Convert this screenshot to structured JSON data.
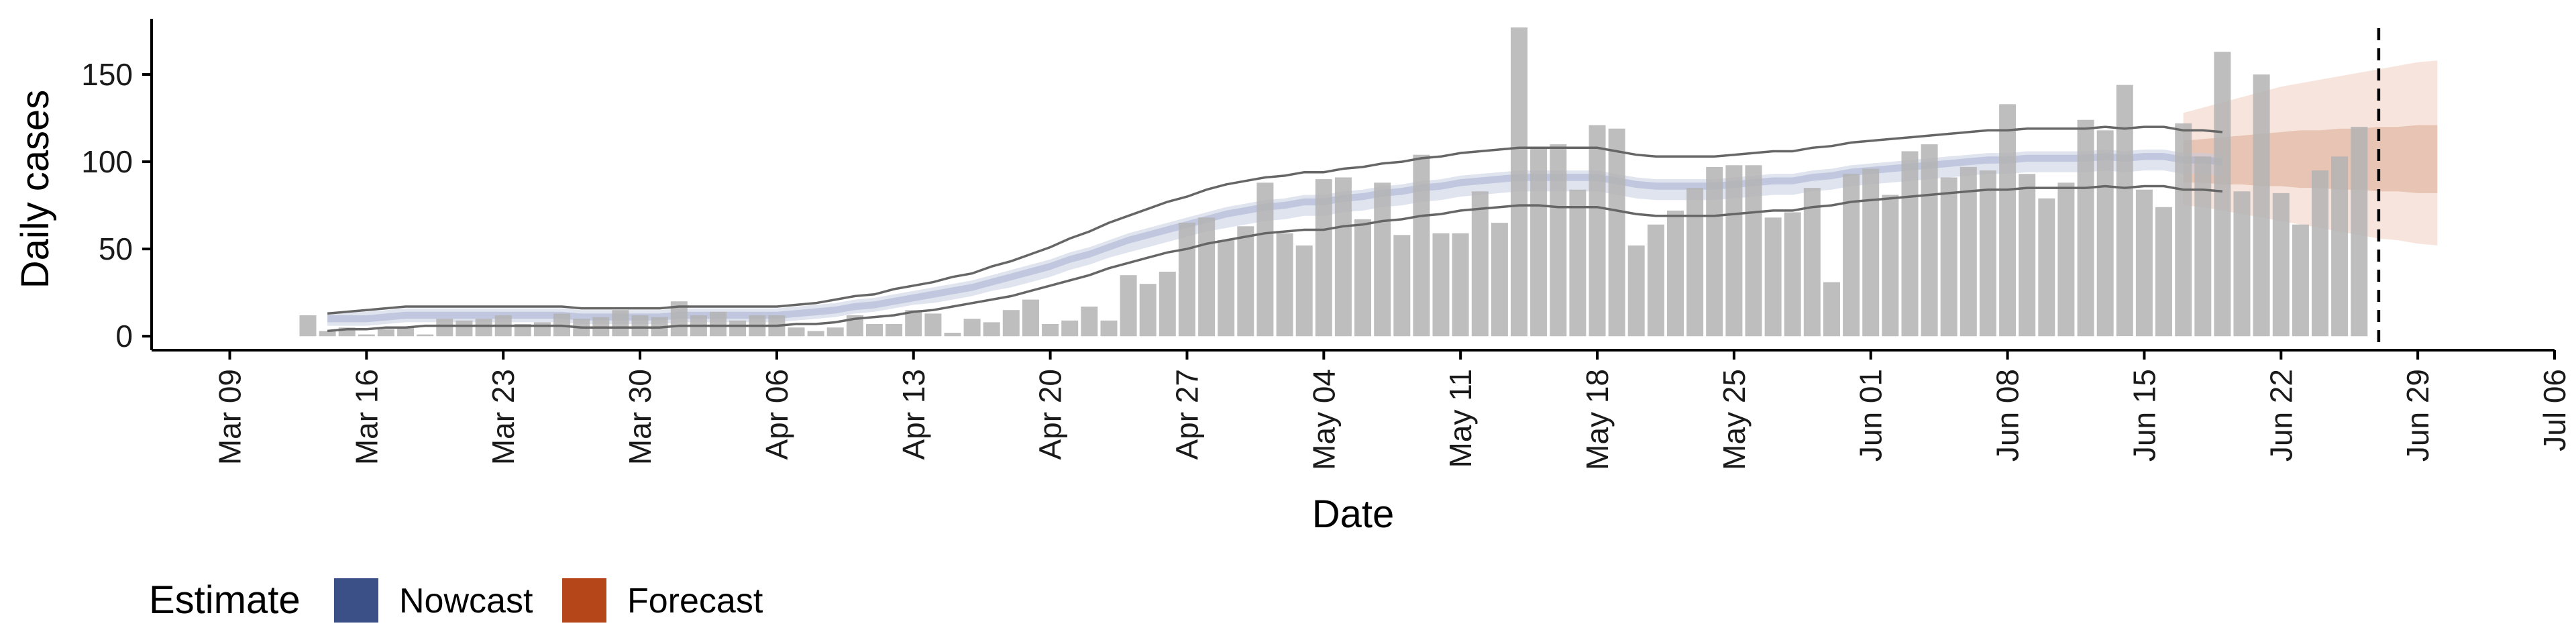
{
  "chart_data": {
    "type": "bar",
    "xlabel": "Date",
    "ylabel": "Daily cases",
    "ylim": [
      -8,
      185
    ],
    "yticks": [
      0,
      50,
      100,
      150
    ],
    "xlim": [
      "2020-03-05",
      "2020-07-06"
    ],
    "xticks": [
      "2020-03-09",
      "2020-03-16",
      "2020-03-23",
      "2020-03-30",
      "2020-04-06",
      "2020-04-13",
      "2020-04-20",
      "2020-04-27",
      "2020-05-04",
      "2020-05-11",
      "2020-05-18",
      "2020-05-25",
      "2020-06-01",
      "2020-06-08",
      "2020-06-15",
      "2020-06-22",
      "2020-06-29",
      "2020-07-06"
    ],
    "xtick_labels": [
      "Mar 09",
      "Mar 16",
      "Mar 23",
      "Mar 30",
      "Apr 06",
      "Apr 13",
      "Apr 20",
      "Apr 27",
      "May 04",
      "May 11",
      "May 18",
      "May 25",
      "Jun 01",
      "Jun 08",
      "Jun 15",
      "Jun 22",
      "Jun 29",
      "Jul 06"
    ],
    "grid": false,
    "legend": {
      "title": "Estimate",
      "position": "bottom-left",
      "entries": [
        {
          "label": "Nowcast",
          "color": "#3b5086"
        },
        {
          "label": "Forecast",
          "color": "#b5461a"
        }
      ]
    },
    "reference_line": {
      "x": "2020-06-27",
      "style": "dashed"
    },
    "bar_color": "#b3b3b3",
    "cases": {
      "start": "2020-03-13",
      "values": [
        12,
        3,
        5,
        1,
        4,
        5,
        1,
        10,
        9,
        10,
        12,
        7,
        8,
        13,
        10,
        11,
        15,
        12,
        11,
        20,
        12,
        14,
        9,
        12,
        12,
        5,
        3,
        5,
        12,
        7,
        7,
        15,
        13,
        2,
        10,
        8,
        15,
        21,
        7,
        9,
        17,
        9,
        35,
        30,
        37,
        65,
        68,
        55,
        63,
        88,
        59,
        52,
        90,
        91,
        67,
        88,
        58,
        104,
        59,
        59,
        83,
        65,
        177,
        108,
        110,
        84,
        121,
        119,
        52,
        64,
        72,
        85,
        97,
        98,
        98,
        68,
        71,
        85,
        31,
        93,
        96,
        81,
        106,
        110,
        91,
        97,
        95,
        133,
        93,
        79,
        88,
        124,
        118,
        144,
        84,
        74,
        122,
        103,
        163,
        83,
        150,
        82,
        64,
        95,
        103,
        120
      ]
    },
    "nowcast": {
      "start": "2020-03-14",
      "median": [
        10,
        10,
        10,
        11,
        12,
        12,
        12,
        12,
        12,
        12,
        12,
        12,
        12,
        11,
        11,
        11,
        11,
        11,
        12,
        12,
        12,
        12,
        12,
        12,
        13,
        14,
        15,
        17,
        18,
        20,
        22,
        24,
        26,
        28,
        31,
        34,
        37,
        40,
        44,
        47,
        51,
        55,
        58,
        61,
        64,
        67,
        70,
        72,
        74,
        75,
        77,
        77,
        79,
        80,
        82,
        83,
        85,
        86,
        88,
        89,
        90,
        91,
        91,
        91,
        91,
        91,
        89,
        87,
        86,
        86,
        86,
        86,
        87,
        88,
        89,
        89,
        91,
        92,
        94,
        95,
        96,
        97,
        98,
        99,
        100,
        101,
        101,
        102,
        102,
        102,
        102,
        103,
        102,
        103,
        103,
        101,
        101,
        100
      ],
      "q25": [
        8,
        8,
        8,
        9,
        10,
        10,
        10,
        10,
        10,
        10,
        10,
        10,
        10,
        9,
        9,
        9,
        9,
        9,
        10,
        10,
        10,
        10,
        10,
        10,
        11,
        12,
        13,
        15,
        16,
        18,
        20,
        22,
        24,
        26,
        29,
        32,
        35,
        38,
        42,
        45,
        49,
        53,
        56,
        59,
        62,
        65,
        68,
        70,
        72,
        73,
        75,
        75,
        77,
        78,
        80,
        81,
        83,
        84,
        86,
        87,
        88,
        89,
        89,
        89,
        89,
        89,
        87,
        85,
        84,
        84,
        84,
        84,
        85,
        86,
        87,
        87,
        89,
        90,
        92,
        93,
        94,
        95,
        96,
        97,
        98,
        99,
        99,
        100,
        100,
        100,
        100,
        101,
        100,
        101,
        101,
        99,
        99,
        98
      ],
      "q75": [
        12,
        12,
        12,
        13,
        14,
        14,
        14,
        14,
        14,
        14,
        14,
        14,
        14,
        13,
        13,
        13,
        13,
        13,
        14,
        14,
        14,
        14,
        14,
        14,
        15,
        16,
        17,
        19,
        20,
        22,
        24,
        26,
        28,
        30,
        33,
        36,
        39,
        42,
        46,
        49,
        53,
        57,
        60,
        63,
        66,
        69,
        72,
        74,
        76,
        77,
        79,
        79,
        81,
        82,
        84,
        85,
        87,
        88,
        90,
        91,
        92,
        93,
        93,
        93,
        93,
        93,
        91,
        89,
        88,
        88,
        88,
        88,
        89,
        90,
        91,
        91,
        93,
        94,
        96,
        97,
        98,
        99,
        100,
        101,
        102,
        103,
        103,
        104,
        104,
        104,
        104,
        105,
        104,
        105,
        105,
        103,
        103,
        102
      ],
      "q10": [
        6,
        6,
        6,
        7,
        8,
        8,
        8,
        8,
        8,
        8,
        8,
        8,
        8,
        7,
        7,
        7,
        7,
        7,
        8,
        8,
        8,
        8,
        8,
        8,
        9,
        10,
        11,
        13,
        14,
        16,
        18,
        19,
        21,
        23,
        26,
        28,
        31,
        34,
        38,
        41,
        45,
        48,
        51,
        54,
        57,
        60,
        62,
        64,
        66,
        67,
        69,
        69,
        71,
        72,
        74,
        75,
        77,
        78,
        80,
        81,
        82,
        83,
        83,
        83,
        83,
        83,
        81,
        79,
        78,
        78,
        78,
        78,
        79,
        80,
        81,
        81,
        83,
        84,
        86,
        87,
        88,
        89,
        90,
        91,
        92,
        93,
        93,
        94,
        94,
        94,
        94,
        95,
        94,
        95,
        95,
        93,
        93,
        92
      ],
      "q90": [
        14,
        14,
        14,
        15,
        16,
        16,
        16,
        16,
        16,
        16,
        16,
        16,
        16,
        15,
        15,
        15,
        15,
        15,
        16,
        16,
        16,
        16,
        16,
        16,
        17,
        18,
        19,
        21,
        22,
        24,
        26,
        28,
        30,
        32,
        35,
        38,
        41,
        44,
        48,
        51,
        55,
        59,
        62,
        65,
        68,
        71,
        74,
        76,
        78,
        79,
        81,
        81,
        83,
        84,
        86,
        87,
        89,
        90,
        92,
        93,
        94,
        95,
        95,
        95,
        95,
        95,
        93,
        91,
        90,
        90,
        90,
        90,
        91,
        92,
        93,
        93,
        95,
        96,
        98,
        99,
        100,
        101,
        102,
        103,
        104,
        105,
        105,
        106,
        106,
        106,
        106,
        107,
        106,
        107,
        107,
        105,
        105,
        104
      ],
      "lower": [
        3,
        4,
        4,
        5,
        5,
        6,
        6,
        6,
        6,
        6,
        6,
        6,
        6,
        5,
        5,
        5,
        5,
        5,
        6,
        6,
        6,
        6,
        6,
        6,
        7,
        7,
        8,
        10,
        11,
        12,
        14,
        15,
        17,
        19,
        21,
        23,
        26,
        29,
        32,
        35,
        39,
        42,
        45,
        48,
        50,
        53,
        55,
        57,
        59,
        60,
        61,
        61,
        63,
        64,
        66,
        67,
        69,
        70,
        72,
        73,
        74,
        75,
        75,
        74,
        74,
        74,
        72,
        70,
        69,
        69,
        69,
        69,
        70,
        71,
        72,
        72,
        74,
        75,
        77,
        78,
        79,
        80,
        81,
        82,
        83,
        84,
        84,
        85,
        85,
        85,
        85,
        86,
        85,
        86,
        86,
        84,
        84,
        83
      ],
      "upper": [
        13,
        14,
        15,
        16,
        17,
        17,
        17,
        17,
        17,
        17,
        17,
        17,
        17,
        16,
        16,
        16,
        16,
        16,
        17,
        17,
        17,
        17,
        17,
        17,
        18,
        19,
        21,
        23,
        24,
        27,
        29,
        31,
        34,
        36,
        40,
        43,
        47,
        51,
        56,
        60,
        65,
        69,
        73,
        77,
        80,
        84,
        87,
        89,
        91,
        92,
        94,
        94,
        96,
        97,
        99,
        100,
        102,
        103,
        105,
        106,
        107,
        108,
        108,
        108,
        108,
        108,
        106,
        104,
        103,
        103,
        103,
        103,
        104,
        105,
        106,
        106,
        108,
        109,
        111,
        112,
        113,
        114,
        115,
        116,
        117,
        118,
        118,
        119,
        119,
        119,
        119,
        120,
        119,
        120,
        120,
        118,
        118,
        117
      ]
    },
    "forecast": {
      "start": "2020-06-17",
      "median": [
        100,
        101,
        101,
        102,
        102,
        103,
        103,
        104,
        104,
        104,
        105,
        105,
        105,
        105
      ],
      "q25": [
        88,
        88,
        87,
        87,
        86,
        86,
        85,
        85,
        84,
        84,
        83,
        83,
        82,
        82
      ],
      "q75": [
        112,
        113,
        114,
        115,
        116,
        117,
        118,
        118,
        119,
        119,
        120,
        120,
        121,
        121
      ],
      "q10": [
        75,
        74,
        72,
        70,
        68,
        66,
        64,
        62,
        60,
        58,
        56,
        55,
        53,
        52
      ],
      "q90": [
        128,
        131,
        134,
        137,
        140,
        143,
        145,
        147,
        149,
        151,
        153,
        155,
        157,
        158
      ]
    }
  }
}
